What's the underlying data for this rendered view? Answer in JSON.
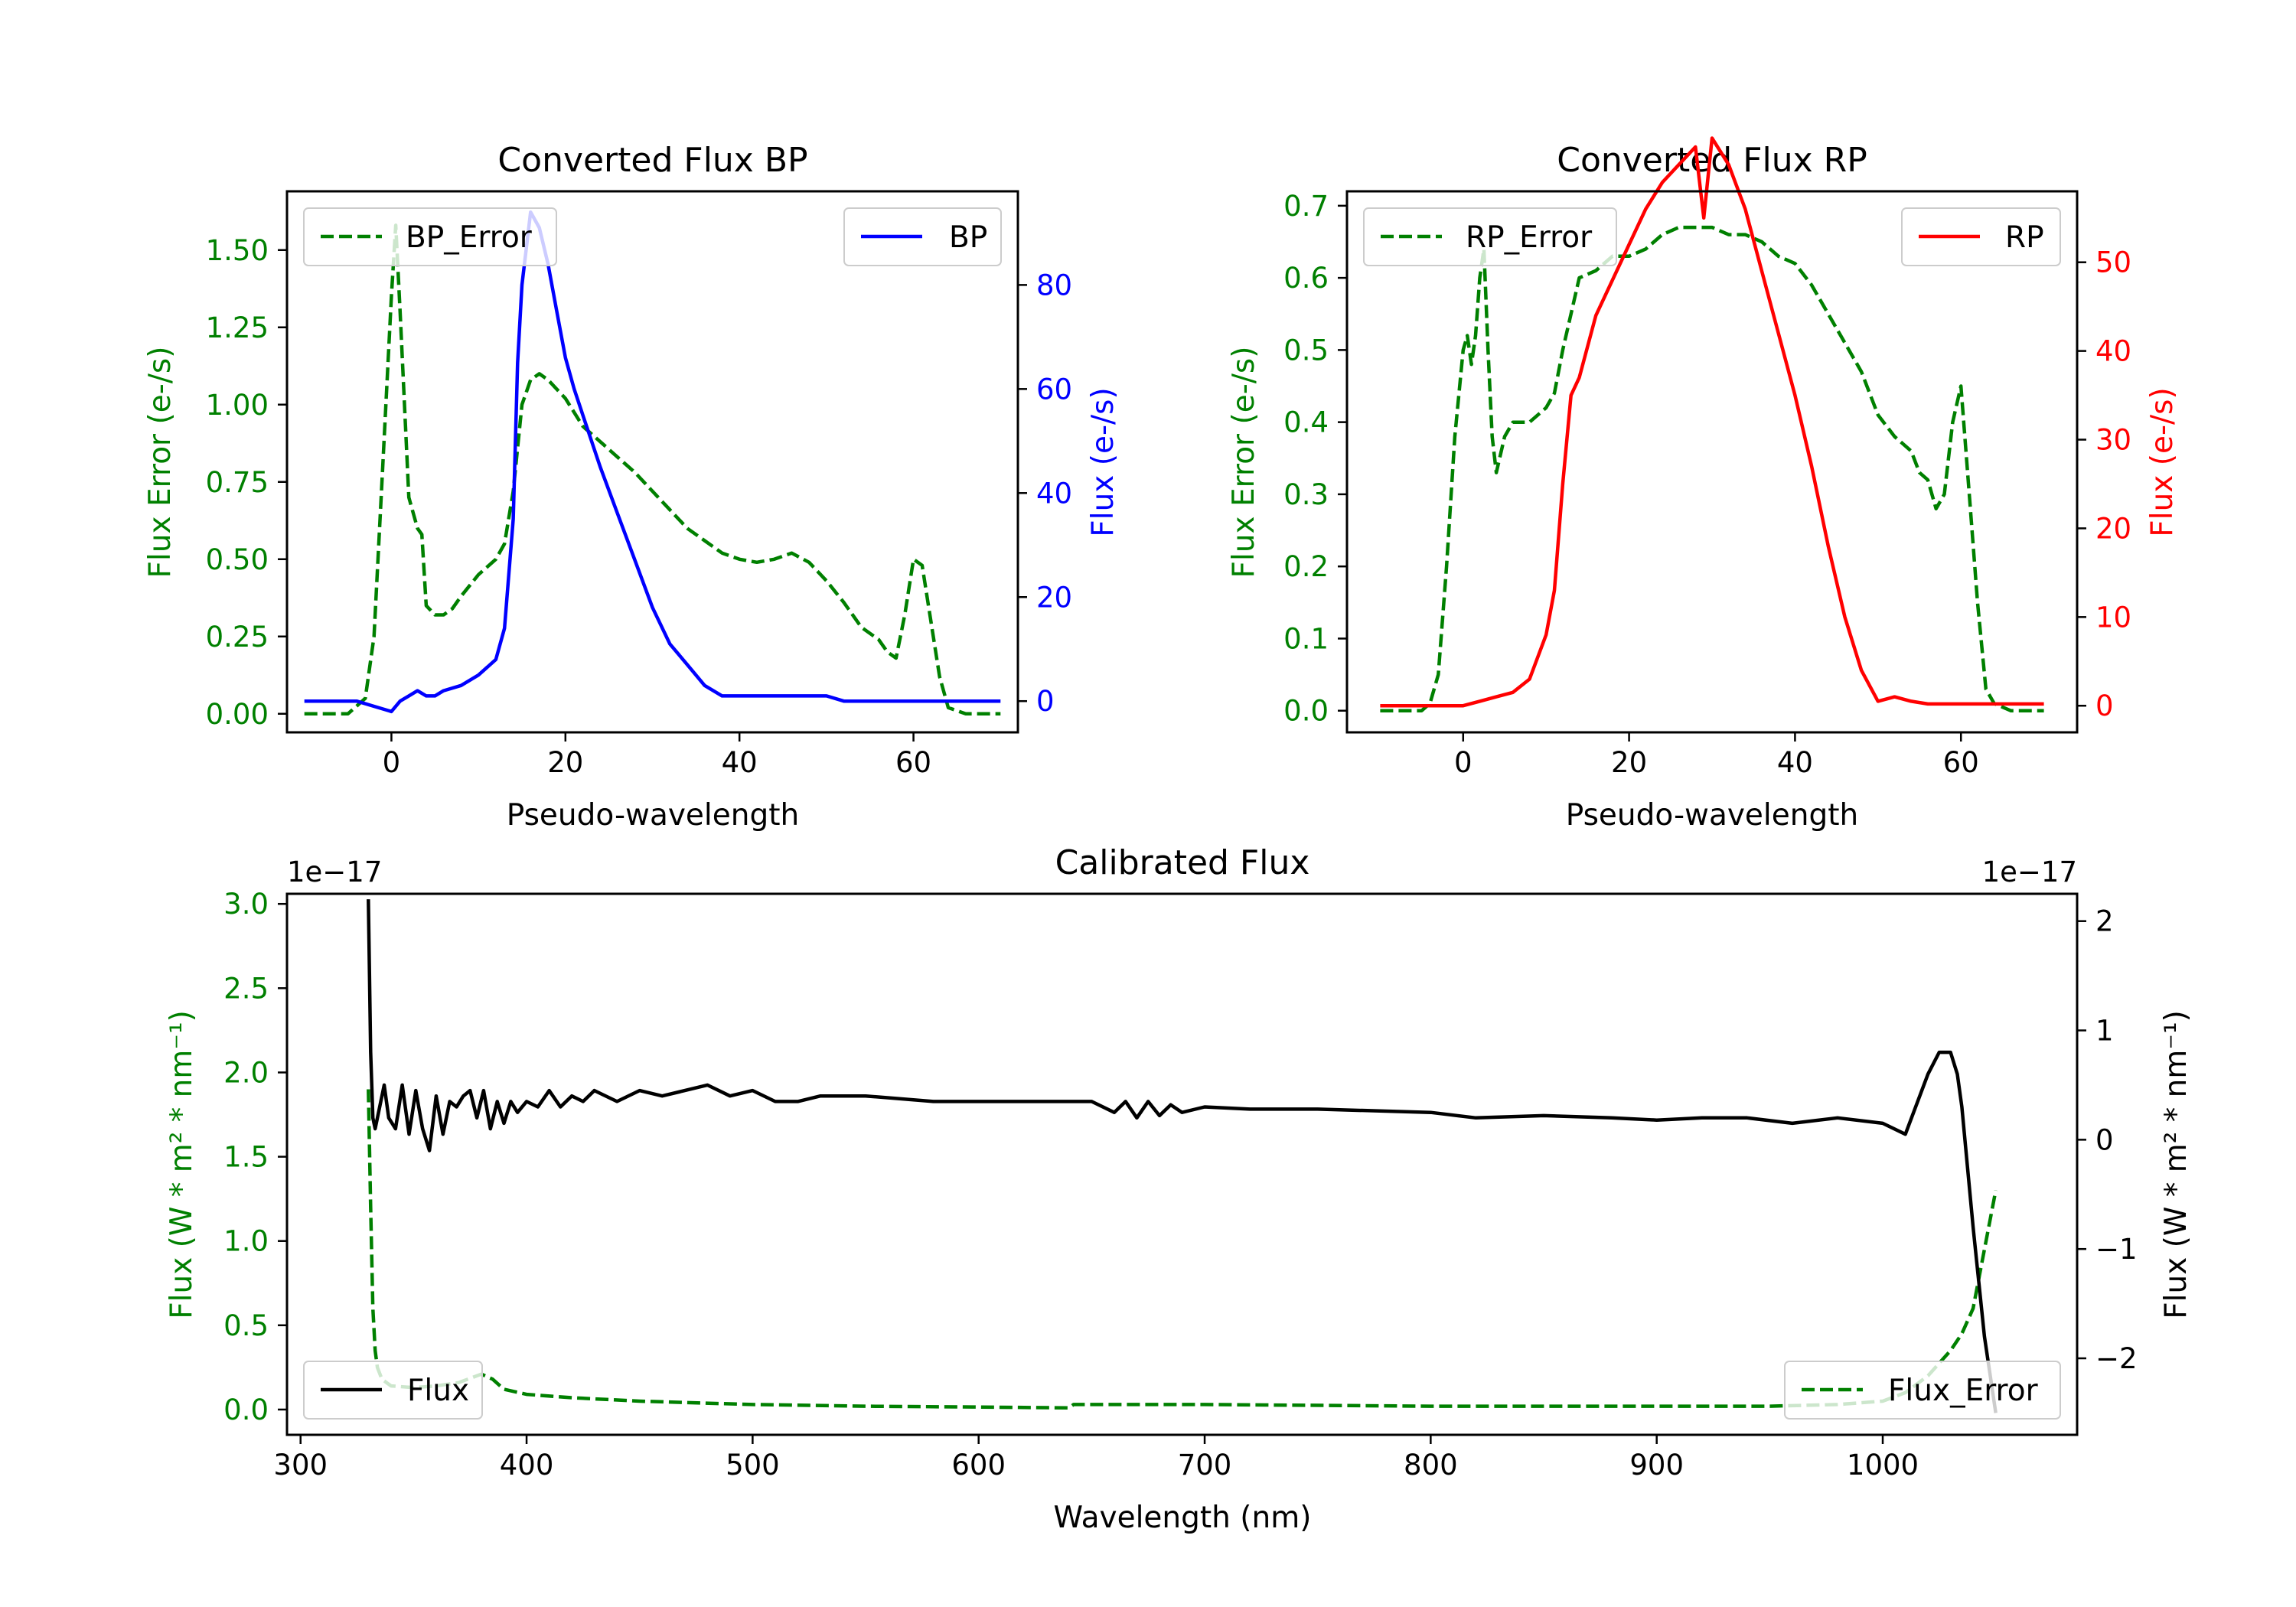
{
  "colors": {
    "green": "#008000",
    "blue": "#0000ff",
    "red": "#ff0000",
    "black": "#000000"
  },
  "chart_data": [
    {
      "id": "bp",
      "type": "line",
      "title": "Converted Flux BP",
      "xlabel": "Pseudo-wavelength",
      "ylabel_left": "Flux Error (e-/s)",
      "ylabel_right": "Flux (e-/s)",
      "xlim": [
        -12,
        72
      ],
      "ylim_left": [
        -0.06,
        1.69
      ],
      "ylim_right": [
        -6,
        98
      ],
      "xticks": [
        "0",
        "20",
        "40",
        "60"
      ],
      "xtick_values": [
        0,
        20,
        40,
        60
      ],
      "yticks_left": [
        "0.00",
        "0.25",
        "0.50",
        "0.75",
        "1.00",
        "1.25",
        "1.50"
      ],
      "ytick_values_left": [
        0,
        0.25,
        0.5,
        0.75,
        1.0,
        1.25,
        1.5
      ],
      "yticks_right": [
        "0",
        "20",
        "40",
        "60",
        "80"
      ],
      "ytick_values_right": [
        0,
        20,
        40,
        60,
        80
      ],
      "legend_left": {
        "label": "BP_Error",
        "placement": "upper left"
      },
      "legend_right": {
        "label": "BP",
        "placement": "upper right"
      },
      "series_left": {
        "name": "BP_Error",
        "color": "#008000",
        "style": "dashed",
        "x": [
          -10,
          -5,
          -3,
          -2,
          -1,
          0,
          0.5,
          1,
          2,
          3,
          3.5,
          4,
          5,
          6,
          7,
          8,
          10,
          12,
          13,
          14,
          15,
          16,
          17,
          18,
          20,
          22,
          24,
          26,
          28,
          30,
          32,
          34,
          36,
          38,
          40,
          42,
          44,
          46,
          48,
          50,
          52,
          54,
          56,
          57,
          58,
          59,
          60,
          61,
          62,
          63,
          64,
          66,
          70
        ],
        "y": [
          0,
          0,
          0.05,
          0.25,
          0.8,
          1.35,
          1.58,
          1.3,
          0.7,
          0.6,
          0.58,
          0.35,
          0.32,
          0.32,
          0.34,
          0.38,
          0.45,
          0.5,
          0.55,
          0.72,
          1.0,
          1.08,
          1.1,
          1.08,
          1.02,
          0.93,
          0.88,
          0.83,
          0.78,
          0.72,
          0.66,
          0.6,
          0.56,
          0.52,
          0.5,
          0.49,
          0.5,
          0.52,
          0.49,
          0.43,
          0.36,
          0.28,
          0.24,
          0.2,
          0.18,
          0.32,
          0.5,
          0.48,
          0.3,
          0.12,
          0.02,
          0,
          0
        ]
      },
      "series_right": {
        "name": "BP",
        "color": "#0000ff",
        "style": "solid",
        "x": [
          -10,
          -6,
          -4,
          -2,
          0,
          1,
          2,
          3,
          4,
          5,
          6,
          8,
          10,
          12,
          13,
          14,
          14.5,
          15,
          16,
          17,
          18,
          19,
          20,
          21,
          22,
          24,
          26,
          28,
          30,
          32,
          34,
          36,
          38,
          40,
          42,
          44,
          46,
          48,
          50,
          52,
          54,
          56,
          58,
          60,
          62,
          64,
          66,
          70
        ],
        "y": [
          0,
          0,
          0,
          -1,
          -2,
          0,
          1,
          2,
          1,
          1,
          2,
          3,
          5,
          8,
          14,
          35,
          65,
          80,
          94,
          91,
          84,
          75,
          66,
          60,
          55,
          45,
          36,
          27,
          18,
          11,
          7,
          3,
          1,
          1,
          1,
          1,
          1,
          1,
          1,
          0,
          0,
          0,
          0,
          0,
          0,
          0,
          0,
          0
        ]
      }
    },
    {
      "id": "rp",
      "type": "line",
      "title": "Converted Flux RP",
      "xlabel": "Pseudo-wavelength",
      "ylabel_left": "Flux Error (e-/s)",
      "ylabel_right": "Flux (e-/s)",
      "xlim": [
        -14,
        74
      ],
      "ylim_left": [
        -0.03,
        0.72
      ],
      "ylim_right": [
        -3,
        58
      ],
      "xticks": [
        "0",
        "20",
        "40",
        "60"
      ],
      "xtick_values": [
        0,
        20,
        40,
        60
      ],
      "yticks_left": [
        "0.0",
        "0.1",
        "0.2",
        "0.3",
        "0.4",
        "0.5",
        "0.6",
        "0.7"
      ],
      "ytick_values_left": [
        0,
        0.1,
        0.2,
        0.3,
        0.4,
        0.5,
        0.6,
        0.7
      ],
      "yticks_right": [
        "0",
        "10",
        "20",
        "30",
        "40",
        "50"
      ],
      "ytick_values_right": [
        0,
        10,
        20,
        30,
        40,
        50
      ],
      "legend_left": {
        "label": "RP_Error",
        "placement": "upper left"
      },
      "legend_right": {
        "label": "RP",
        "placement": "upper right"
      },
      "series_left": {
        "name": "RP_Error",
        "color": "#008000",
        "style": "dashed",
        "x": [
          -10,
          -5,
          -4,
          -3,
          -2,
          -1,
          0,
          0.5,
          1,
          1.5,
          2,
          2.5,
          3,
          3.5,
          4,
          5,
          6,
          8,
          10,
          11,
          12,
          14,
          16,
          18,
          20,
          22,
          24,
          26,
          28,
          30,
          32,
          34,
          36,
          38,
          40,
          42,
          44,
          46,
          48,
          50,
          52,
          54,
          55,
          56,
          57,
          58,
          59,
          60,
          61,
          62,
          63,
          64,
          66,
          70
        ],
        "y": [
          0,
          0,
          0.01,
          0.05,
          0.2,
          0.38,
          0.5,
          0.52,
          0.48,
          0.52,
          0.6,
          0.64,
          0.5,
          0.38,
          0.33,
          0.38,
          0.4,
          0.4,
          0.42,
          0.44,
          0.5,
          0.6,
          0.61,
          0.63,
          0.63,
          0.64,
          0.66,
          0.67,
          0.67,
          0.67,
          0.66,
          0.66,
          0.65,
          0.63,
          0.62,
          0.59,
          0.55,
          0.51,
          0.47,
          0.41,
          0.38,
          0.36,
          0.33,
          0.32,
          0.28,
          0.3,
          0.4,
          0.45,
          0.3,
          0.15,
          0.03,
          0.01,
          0,
          0
        ]
      },
      "series_right": {
        "name": "RP",
        "color": "#ff0000",
        "style": "solid",
        "x": [
          -10,
          -4,
          0,
          2,
          4,
          6,
          8,
          10,
          11,
          12,
          13,
          14,
          16,
          18,
          20,
          22,
          24,
          26,
          28,
          29,
          30,
          32,
          34,
          36,
          38,
          40,
          42,
          44,
          46,
          48,
          50,
          52,
          54,
          56,
          58,
          60,
          62,
          70
        ],
        "y": [
          0,
          0,
          0,
          0.5,
          1,
          1.5,
          3,
          8,
          13,
          25,
          35,
          37,
          44,
          48,
          52,
          56,
          59,
          61,
          63,
          55,
          64,
          61,
          56,
          49,
          42,
          35,
          27,
          18,
          10,
          4,
          0.5,
          1,
          0.5,
          0.2,
          0.2,
          0.2,
          0.2,
          0.2
        ]
      }
    },
    {
      "id": "cal",
      "type": "line",
      "title": "Calibrated Flux",
      "xlabel": "Wavelength (nm)",
      "ylabel_left": "Flux (W * m² * nm⁻¹)",
      "ylabel_right": "Flux (W * m² * nm⁻¹)",
      "offset_left": "1e−17",
      "offset_right": "1e−17",
      "xlim": [
        294,
        1086
      ],
      "ylim_left": [
        -0.15,
        3.06
      ],
      "ylim_right": [
        -2.7,
        2.25
      ],
      "xticks": [
        "300",
        "400",
        "500",
        "600",
        "700",
        "800",
        "900",
        "1000"
      ],
      "xtick_values": [
        300,
        400,
        500,
        600,
        700,
        800,
        900,
        1000
      ],
      "yticks_left": [
        "0.0",
        "0.5",
        "1.0",
        "1.5",
        "2.0",
        "2.5",
        "3.0"
      ],
      "ytick_values_left": [
        0,
        0.5,
        1.0,
        1.5,
        2.0,
        2.5,
        3.0
      ],
      "yticks_right": [
        "−2",
        "−1",
        "0",
        "1",
        "2"
      ],
      "ytick_values_right": [
        -2,
        -1,
        0,
        1,
        2
      ],
      "legend_left": {
        "label": "Flux",
        "placement": "lower left"
      },
      "legend_right": {
        "label": "Flux_Error",
        "placement": "lower right"
      },
      "series_left": {
        "name": "Flux_Error",
        "color": "#008000",
        "style": "dashed",
        "x": [
          330,
          331,
          332,
          333,
          334,
          336,
          340,
          350,
          360,
          370,
          380,
          385,
          390,
          400,
          420,
          450,
          500,
          550,
          600,
          640,
          642,
          700,
          800,
          900,
          950,
          980,
          1000,
          1010,
          1020,
          1030,
          1035,
          1040,
          1045,
          1050
        ],
        "y": [
          1.9,
          1.2,
          0.6,
          0.35,
          0.25,
          0.18,
          0.14,
          0.13,
          0.14,
          0.16,
          0.21,
          0.18,
          0.12,
          0.09,
          0.07,
          0.05,
          0.03,
          0.02,
          0.015,
          0.01,
          0.03,
          0.03,
          0.02,
          0.02,
          0.02,
          0.03,
          0.05,
          0.1,
          0.2,
          0.35,
          0.45,
          0.6,
          0.95,
          1.3
        ]
      },
      "series_right": {
        "name": "Flux",
        "color": "#000000",
        "style": "solid",
        "x": [
          330,
          331,
          332,
          333,
          335,
          337,
          339,
          342,
          345,
          348,
          351,
          354,
          357,
          360,
          363,
          366,
          369,
          372,
          375,
          378,
          381,
          384,
          387,
          390,
          393,
          396,
          400,
          405,
          410,
          415,
          420,
          425,
          430,
          440,
          450,
          460,
          470,
          480,
          490,
          500,
          510,
          520,
          530,
          550,
          580,
          600,
          630,
          650,
          660,
          665,
          670,
          675,
          680,
          685,
          690,
          700,
          720,
          750,
          800,
          820,
          850,
          880,
          900,
          920,
          940,
          960,
          980,
          1000,
          1010,
          1020,
          1025,
          1030,
          1033,
          1035,
          1040,
          1045,
          1050
        ],
        "y": [
          2.2,
          0.8,
          0.2,
          0.1,
          0.3,
          0.5,
          0.2,
          0.1,
          0.5,
          0.05,
          0.45,
          0.1,
          -0.1,
          0.4,
          0.05,
          0.35,
          0.3,
          0.4,
          0.45,
          0.2,
          0.45,
          0.1,
          0.35,
          0.15,
          0.35,
          0.25,
          0.35,
          0.3,
          0.45,
          0.3,
          0.4,
          0.35,
          0.45,
          0.35,
          0.45,
          0.4,
          0.45,
          0.5,
          0.4,
          0.45,
          0.35,
          0.35,
          0.4,
          0.4,
          0.35,
          0.35,
          0.35,
          0.35,
          0.25,
          0.35,
          0.2,
          0.35,
          0.22,
          0.32,
          0.25,
          0.3,
          0.28,
          0.28,
          0.25,
          0.2,
          0.22,
          0.2,
          0.18,
          0.2,
          0.2,
          0.15,
          0.2,
          0.15,
          0.05,
          0.6,
          0.8,
          0.8,
          0.6,
          0.3,
          -0.8,
          -1.8,
          -2.5
        ]
      }
    }
  ]
}
